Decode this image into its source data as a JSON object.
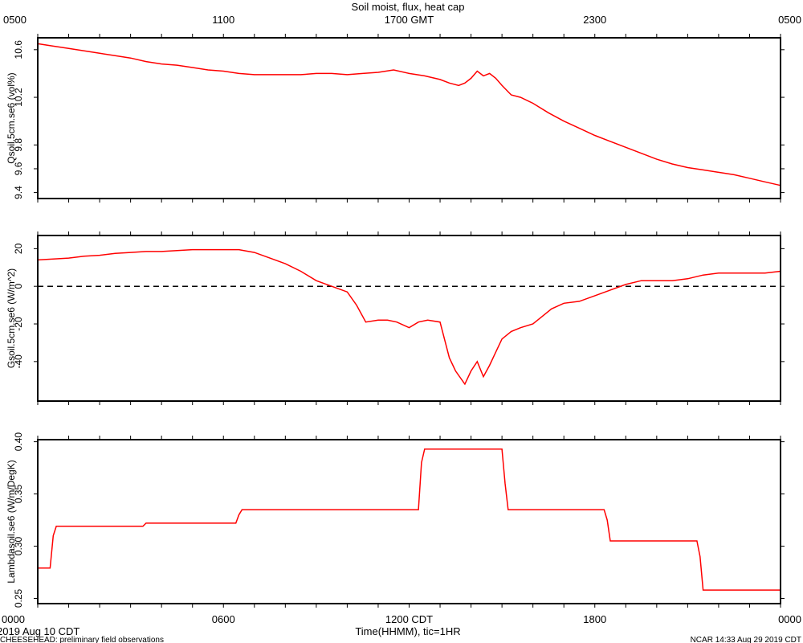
{
  "chart_data": {
    "type": "line",
    "title": "Soil moist, flux, heat cap",
    "top_axis": {
      "unit_label": "GMT",
      "tick_labels": [
        "0500",
        "1100",
        "1700 GMT",
        "2300",
        "0500"
      ],
      "tick_hours": [
        0,
        6,
        12,
        18,
        24
      ]
    },
    "bottom_axis": {
      "tick_labels": [
        "0000",
        "0600",
        "1200 CDT",
        "1800",
        "0000"
      ],
      "tick_hours": [
        0,
        6,
        12,
        18,
        24
      ],
      "xlabel": "Time(HHMM), tic=1HR",
      "date_label": "2019 Aug 10 CDT",
      "xlim_hours": [
        0,
        24
      ]
    },
    "footer_left": "CHEESEHEAD: preliminary field observations",
    "footer_right": "NCAR 14:33 Aug 29 2019 CDT",
    "panels": [
      {
        "name": "Qsoil.5cm.se6",
        "ylabel": "Qsoil.5cm.se6 (vol%)",
        "ylim": [
          9.35,
          10.7
        ],
        "yticks": [
          9.4,
          9.6,
          9.8,
          10.2,
          10.6
        ],
        "ytick_labels": [
          "9.4",
          "9.6",
          "9.8",
          "10.2",
          "10.6"
        ],
        "zero_line": false,
        "series": [
          {
            "x": [
              0,
              0.5,
              1,
              1.5,
              2,
              2.5,
              3,
              3.5,
              4,
              4.5,
              5,
              5.5,
              6,
              6.5,
              7,
              7.5,
              8,
              8.5,
              9,
              9.5,
              10,
              10.5,
              11,
              11.5,
              12,
              12.5,
              13,
              13.3,
              13.6,
              13.8,
              14,
              14.2,
              14.4,
              14.6,
              14.8,
              15,
              15.3,
              15.6,
              16,
              16.5,
              17,
              17.5,
              18,
              18.5,
              19,
              19.5,
              20,
              20.5,
              21,
              21.5,
              22,
              22.5,
              23,
              23.5,
              24
            ],
            "y": [
              10.65,
              10.63,
              10.61,
              10.59,
              10.57,
              10.55,
              10.53,
              10.5,
              10.48,
              10.47,
              10.45,
              10.43,
              10.42,
              10.4,
              10.39,
              10.39,
              10.39,
              10.39,
              10.4,
              10.4,
              10.39,
              10.4,
              10.41,
              10.43,
              10.4,
              10.38,
              10.35,
              10.32,
              10.3,
              10.32,
              10.36,
              10.42,
              10.38,
              10.4,
              10.36,
              10.3,
              10.22,
              10.2,
              10.15,
              10.07,
              10.0,
              9.94,
              9.88,
              9.83,
              9.78,
              9.73,
              9.68,
              9.64,
              9.61,
              9.59,
              9.57,
              9.55,
              9.52,
              9.49,
              9.46
            ]
          }
        ]
      },
      {
        "name": "Gsoil.5cm.se6",
        "ylabel": "Gsoil.5cm.se6 (W/m^2)",
        "ylim": [
          -61,
          27
        ],
        "yticks": [
          -40,
          -20,
          0,
          20
        ],
        "ytick_labels": [
          "-40",
          "-20",
          "0",
          "20"
        ],
        "zero_line": true,
        "series": [
          {
            "x": [
              0,
              0.5,
              1,
              1.5,
              2,
              2.5,
              3,
              3.5,
              4,
              4.5,
              5,
              5.5,
              6,
              6.5,
              7,
              7.5,
              8,
              8.5,
              9,
              9.5,
              10,
              10.3,
              10.6,
              11,
              11.3,
              11.6,
              12,
              12.3,
              12.6,
              13,
              13.3,
              13.5,
              13.8,
              14,
              14.2,
              14.4,
              14.6,
              14.8,
              15,
              15.3,
              15.6,
              16,
              16.3,
              16.6,
              17,
              17.5,
              18,
              18.5,
              19,
              19.5,
              20,
              20.5,
              21,
              21.5,
              22,
              22.5,
              23,
              23.5,
              24
            ],
            "y": [
              14,
              14.5,
              15,
              16,
              16.5,
              17.5,
              18,
              18.5,
              18.5,
              19,
              19.5,
              19.5,
              19.5,
              19.5,
              18,
              15,
              12,
              8,
              3,
              0,
              -3,
              -10,
              -19,
              -18,
              -18,
              -19,
              -22,
              -19,
              -18,
              -19,
              -38,
              -45,
              -52,
              -45,
              -40,
              -48,
              -42,
              -35,
              -28,
              -24,
              -22,
              -20,
              -16,
              -12,
              -9,
              -8,
              -5,
              -2,
              1,
              3,
              3,
              3,
              4,
              6,
              7,
              7,
              7,
              7,
              8
            ]
          }
        ]
      },
      {
        "name": "Lambdasoil.se6",
        "ylabel": "Lambdasoil.se6 (W/m/DegK)",
        "ylim": [
          0.245,
          0.402
        ],
        "yticks": [
          0.25,
          0.3,
          0.35,
          0.4
        ],
        "ytick_labels": [
          "0.25",
          "0.30",
          "0.35",
          "0.40"
        ],
        "zero_line": false,
        "series": [
          {
            "x": [
              0,
              0.4,
              0.5,
              0.6,
              3.4,
              3.5,
              3.6,
              6.4,
              6.5,
              6.6,
              12.3,
              12.4,
              12.5,
              15.0,
              15.1,
              15.2,
              18.3,
              18.4,
              18.5,
              21.3,
              21.4,
              21.5,
              24
            ],
            "y": [
              0.279,
              0.279,
              0.31,
              0.319,
              0.319,
              0.322,
              0.322,
              0.322,
              0.33,
              0.335,
              0.335,
              0.38,
              0.393,
              0.393,
              0.36,
              0.335,
              0.335,
              0.325,
              0.305,
              0.305,
              0.29,
              0.258,
              0.258
            ]
          }
        ]
      }
    ]
  }
}
